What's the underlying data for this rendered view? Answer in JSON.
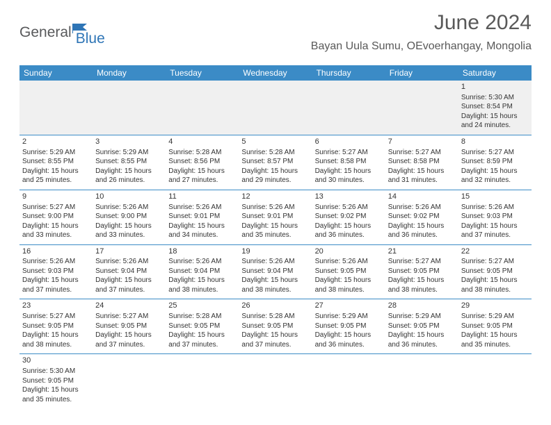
{
  "logo": {
    "word1": "General",
    "word2": "Blue"
  },
  "title": "June 2024",
  "subtitle": "Bayan Uula Sumu, OEvoerhangay, Mongolia",
  "colors": {
    "header_bg": "#3b8bc6",
    "header_text": "#ffffff",
    "row_border": "#3b8bc6",
    "first_row_bg": "#f0f0f0",
    "body_text": "#333333",
    "title_text": "#595959",
    "logo_gray": "#58595b",
    "logo_blue": "#2e75b6"
  },
  "typography": {
    "title_fontsize": 30,
    "subtitle_fontsize": 16,
    "header_fontsize": 12,
    "cell_fontsize": 10,
    "daynum_fontsize": 11
  },
  "week_headers": [
    "Sunday",
    "Monday",
    "Tuesday",
    "Wednesday",
    "Thursday",
    "Friday",
    "Saturday"
  ],
  "weeks": [
    [
      null,
      null,
      null,
      null,
      null,
      null,
      {
        "n": "1",
        "sr": "Sunrise: 5:30 AM",
        "ss": "Sunset: 8:54 PM",
        "d1": "Daylight: 15 hours",
        "d2": "and 24 minutes."
      }
    ],
    [
      {
        "n": "2",
        "sr": "Sunrise: 5:29 AM",
        "ss": "Sunset: 8:55 PM",
        "d1": "Daylight: 15 hours",
        "d2": "and 25 minutes."
      },
      {
        "n": "3",
        "sr": "Sunrise: 5:29 AM",
        "ss": "Sunset: 8:55 PM",
        "d1": "Daylight: 15 hours",
        "d2": "and 26 minutes."
      },
      {
        "n": "4",
        "sr": "Sunrise: 5:28 AM",
        "ss": "Sunset: 8:56 PM",
        "d1": "Daylight: 15 hours",
        "d2": "and 27 minutes."
      },
      {
        "n": "5",
        "sr": "Sunrise: 5:28 AM",
        "ss": "Sunset: 8:57 PM",
        "d1": "Daylight: 15 hours",
        "d2": "and 29 minutes."
      },
      {
        "n": "6",
        "sr": "Sunrise: 5:27 AM",
        "ss": "Sunset: 8:58 PM",
        "d1": "Daylight: 15 hours",
        "d2": "and 30 minutes."
      },
      {
        "n": "7",
        "sr": "Sunrise: 5:27 AM",
        "ss": "Sunset: 8:58 PM",
        "d1": "Daylight: 15 hours",
        "d2": "and 31 minutes."
      },
      {
        "n": "8",
        "sr": "Sunrise: 5:27 AM",
        "ss": "Sunset: 8:59 PM",
        "d1": "Daylight: 15 hours",
        "d2": "and 32 minutes."
      }
    ],
    [
      {
        "n": "9",
        "sr": "Sunrise: 5:27 AM",
        "ss": "Sunset: 9:00 PM",
        "d1": "Daylight: 15 hours",
        "d2": "and 33 minutes."
      },
      {
        "n": "10",
        "sr": "Sunrise: 5:26 AM",
        "ss": "Sunset: 9:00 PM",
        "d1": "Daylight: 15 hours",
        "d2": "and 33 minutes."
      },
      {
        "n": "11",
        "sr": "Sunrise: 5:26 AM",
        "ss": "Sunset: 9:01 PM",
        "d1": "Daylight: 15 hours",
        "d2": "and 34 minutes."
      },
      {
        "n": "12",
        "sr": "Sunrise: 5:26 AM",
        "ss": "Sunset: 9:01 PM",
        "d1": "Daylight: 15 hours",
        "d2": "and 35 minutes."
      },
      {
        "n": "13",
        "sr": "Sunrise: 5:26 AM",
        "ss": "Sunset: 9:02 PM",
        "d1": "Daylight: 15 hours",
        "d2": "and 36 minutes."
      },
      {
        "n": "14",
        "sr": "Sunrise: 5:26 AM",
        "ss": "Sunset: 9:02 PM",
        "d1": "Daylight: 15 hours",
        "d2": "and 36 minutes."
      },
      {
        "n": "15",
        "sr": "Sunrise: 5:26 AM",
        "ss": "Sunset: 9:03 PM",
        "d1": "Daylight: 15 hours",
        "d2": "and 37 minutes."
      }
    ],
    [
      {
        "n": "16",
        "sr": "Sunrise: 5:26 AM",
        "ss": "Sunset: 9:03 PM",
        "d1": "Daylight: 15 hours",
        "d2": "and 37 minutes."
      },
      {
        "n": "17",
        "sr": "Sunrise: 5:26 AM",
        "ss": "Sunset: 9:04 PM",
        "d1": "Daylight: 15 hours",
        "d2": "and 37 minutes."
      },
      {
        "n": "18",
        "sr": "Sunrise: 5:26 AM",
        "ss": "Sunset: 9:04 PM",
        "d1": "Daylight: 15 hours",
        "d2": "and 38 minutes."
      },
      {
        "n": "19",
        "sr": "Sunrise: 5:26 AM",
        "ss": "Sunset: 9:04 PM",
        "d1": "Daylight: 15 hours",
        "d2": "and 38 minutes."
      },
      {
        "n": "20",
        "sr": "Sunrise: 5:26 AM",
        "ss": "Sunset: 9:05 PM",
        "d1": "Daylight: 15 hours",
        "d2": "and 38 minutes."
      },
      {
        "n": "21",
        "sr": "Sunrise: 5:27 AM",
        "ss": "Sunset: 9:05 PM",
        "d1": "Daylight: 15 hours",
        "d2": "and 38 minutes."
      },
      {
        "n": "22",
        "sr": "Sunrise: 5:27 AM",
        "ss": "Sunset: 9:05 PM",
        "d1": "Daylight: 15 hours",
        "d2": "and 38 minutes."
      }
    ],
    [
      {
        "n": "23",
        "sr": "Sunrise: 5:27 AM",
        "ss": "Sunset: 9:05 PM",
        "d1": "Daylight: 15 hours",
        "d2": "and 38 minutes."
      },
      {
        "n": "24",
        "sr": "Sunrise: 5:27 AM",
        "ss": "Sunset: 9:05 PM",
        "d1": "Daylight: 15 hours",
        "d2": "and 37 minutes."
      },
      {
        "n": "25",
        "sr": "Sunrise: 5:28 AM",
        "ss": "Sunset: 9:05 PM",
        "d1": "Daylight: 15 hours",
        "d2": "and 37 minutes."
      },
      {
        "n": "26",
        "sr": "Sunrise: 5:28 AM",
        "ss": "Sunset: 9:05 PM",
        "d1": "Daylight: 15 hours",
        "d2": "and 37 minutes."
      },
      {
        "n": "27",
        "sr": "Sunrise: 5:29 AM",
        "ss": "Sunset: 9:05 PM",
        "d1": "Daylight: 15 hours",
        "d2": "and 36 minutes."
      },
      {
        "n": "28",
        "sr": "Sunrise: 5:29 AM",
        "ss": "Sunset: 9:05 PM",
        "d1": "Daylight: 15 hours",
        "d2": "and 36 minutes."
      },
      {
        "n": "29",
        "sr": "Sunrise: 5:29 AM",
        "ss": "Sunset: 9:05 PM",
        "d1": "Daylight: 15 hours",
        "d2": "and 35 minutes."
      }
    ],
    [
      {
        "n": "30",
        "sr": "Sunrise: 5:30 AM",
        "ss": "Sunset: 9:05 PM",
        "d1": "Daylight: 15 hours",
        "d2": "and 35 minutes."
      },
      null,
      null,
      null,
      null,
      null,
      null
    ]
  ]
}
